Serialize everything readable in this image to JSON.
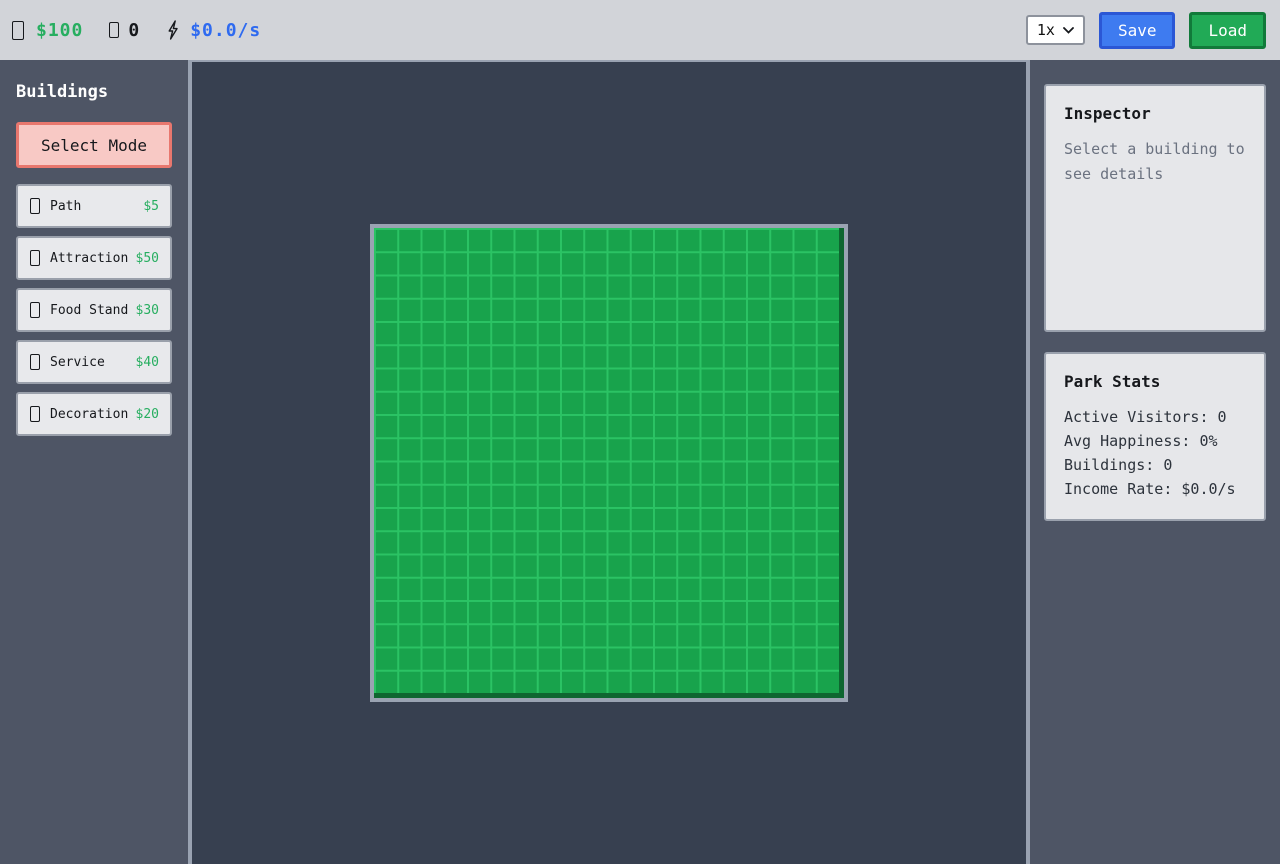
{
  "topbar": {
    "money": "$100",
    "visitors": "0",
    "income_rate": "$0.0/s",
    "speed_selected": "1x",
    "save_label": "Save",
    "load_label": "Load"
  },
  "sidebar": {
    "title": "Buildings",
    "select_mode_label": "Select Mode",
    "items": [
      {
        "name": "Path",
        "price": "$5"
      },
      {
        "name": "Attraction",
        "price": "$50"
      },
      {
        "name": "Food Stand",
        "price": "$30"
      },
      {
        "name": "Service",
        "price": "$40"
      },
      {
        "name": "Decoration",
        "price": "$20"
      }
    ]
  },
  "inspector": {
    "title": "Inspector",
    "placeholder": "Select a building to see details"
  },
  "park_stats": {
    "title": "Park Stats",
    "lines": [
      "Active Visitors: 0",
      "Avg Happiness: 0%",
      "Buildings: 0",
      "Income Rate: $0.0/s"
    ]
  },
  "grid": {
    "rows": 20,
    "cols": 20
  },
  "colors": {
    "money_green": "#27ae60",
    "income_blue": "#2e6af0",
    "grid_cell": "#18a34c",
    "grid_line": "#2bc364",
    "save_blue": "#3e7bf0",
    "load_green": "#21aa56",
    "select_mode_pink": "#f8c9c5",
    "sidebar_bg": "#4e5565",
    "canvas_bg": "#374050",
    "topbar_bg": "#d2d4d9",
    "panel_bg": "#e6e7ea"
  }
}
